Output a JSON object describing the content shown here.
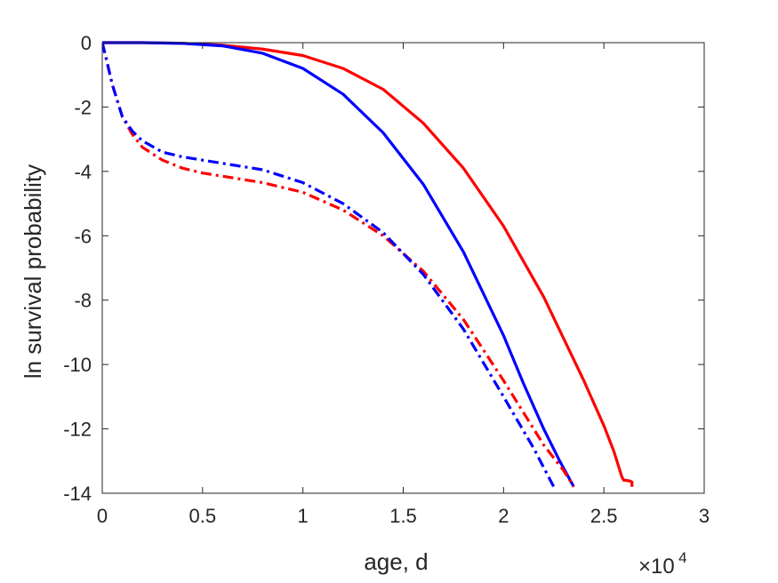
{
  "chart_data": {
    "type": "line",
    "xlabel": "age, d",
    "ylabel": "ln survival probability",
    "x_exponent_base": "×10",
    "x_exponent_power": "4",
    "xlim": [
      0,
      30000
    ],
    "ylim": [
      -14,
      0
    ],
    "x_tick_values": [
      0,
      5000,
      10000,
      15000,
      20000,
      25000,
      30000
    ],
    "x_tick_labels": [
      "0",
      "0.5",
      "1",
      "1.5",
      "2",
      "2.5",
      "3"
    ],
    "y_tick_values": [
      0,
      -2,
      -4,
      -6,
      -8,
      -10,
      -12,
      -14
    ],
    "y_tick_labels": [
      "0",
      "-2",
      "-4",
      "-6",
      "-8",
      "-10",
      "-12",
      "-14"
    ],
    "grid": false,
    "series": [
      {
        "color": "#ff0000",
        "style": "solid",
        "x": [
          0,
          2000,
          4000,
          6000,
          8000,
          10000,
          12000,
          14000,
          16000,
          18000,
          20000,
          22000,
          24000,
          25000,
          25500,
          25900,
          26000,
          26100,
          26300,
          26400,
          26400
        ],
        "y": [
          0,
          0,
          -0.02,
          -0.08,
          -0.2,
          -0.4,
          -0.8,
          -1.45,
          -2.5,
          -3.9,
          -5.7,
          -7.9,
          -10.5,
          -11.9,
          -12.7,
          -13.5,
          -13.6,
          -13.6,
          -13.62,
          -13.65,
          -13.8
        ]
      },
      {
        "color": "#0000ff",
        "style": "solid",
        "x": [
          0,
          2000,
          4000,
          6000,
          8000,
          10000,
          12000,
          14000,
          16000,
          18000,
          20000,
          21000,
          22000,
          22800,
          23500
        ],
        "y": [
          0,
          0,
          -0.02,
          -0.1,
          -0.33,
          -0.8,
          -1.6,
          -2.8,
          -4.4,
          -6.5,
          -9.1,
          -10.6,
          -12.0,
          -13.0,
          -13.8
        ]
      },
      {
        "color": "#ff0000",
        "style": "dashdot",
        "x": [
          0,
          200,
          500,
          1000,
          1500,
          2000,
          3000,
          4000,
          5000,
          6000,
          8000,
          10000,
          12000,
          14000,
          16000,
          18000,
          20000,
          22000,
          23000,
          23500
        ],
        "y": [
          0,
          -0.5,
          -1.3,
          -2.3,
          -2.85,
          -3.25,
          -3.65,
          -3.9,
          -4.05,
          -4.15,
          -4.35,
          -4.65,
          -5.2,
          -6.0,
          -7.1,
          -8.6,
          -10.5,
          -12.5,
          -13.3,
          -13.8
        ]
      },
      {
        "color": "#0000ff",
        "style": "dashdot",
        "x": [
          0,
          200,
          500,
          1000,
          1500,
          2000,
          3000,
          4000,
          5000,
          6000,
          8000,
          10000,
          12000,
          14000,
          16000,
          18000,
          20000,
          21500,
          22500
        ],
        "y": [
          0,
          -0.5,
          -1.3,
          -2.3,
          -2.75,
          -3.05,
          -3.4,
          -3.55,
          -3.65,
          -3.75,
          -3.95,
          -4.35,
          -5.0,
          -5.9,
          -7.2,
          -8.9,
          -11.0,
          -12.6,
          -13.8
        ]
      }
    ]
  }
}
